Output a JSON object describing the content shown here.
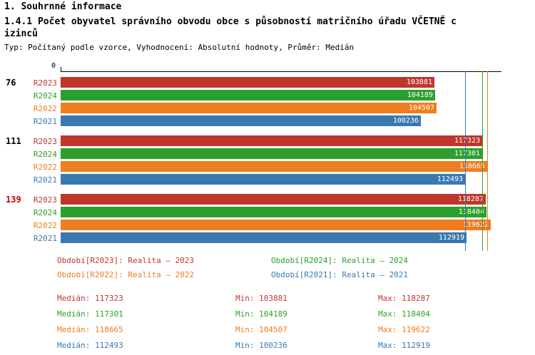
{
  "header": {
    "title": "1. Souhrnné informace",
    "subtitle": "1.4.1 Počet obyvatel správního obvodu obce s působností matričního úřadu VČETNĚ c\nizinců",
    "meta": "Typ: Počítaný podle vzorce, Vyhodnocení: Absolutní hodnoty, Průměr: Medián"
  },
  "colors": {
    "R2023": "#c0362c",
    "R2024": "#2ca02c",
    "R2022": "#ef7d21",
    "R2021": "#3b78b0",
    "group_label_highlight": "#cc0000"
  },
  "chart_data": {
    "type": "bar",
    "orientation": "horizontal",
    "title": "1.4.1 Počet obyvatel správního obvodu obce s působností matričního úřadu VČETNĚ cizinců",
    "x_axis": {
      "min": 0,
      "max": 122000,
      "origin_tick_label": "0",
      "grid": false
    },
    "series_order": [
      "R2023",
      "R2024",
      "R2022",
      "R2021"
    ],
    "groups": [
      {
        "label": "76",
        "highlight": false,
        "values": {
          "R2023": 103881,
          "R2024": 104189,
          "R2022": 104507,
          "R2021": 100236
        }
      },
      {
        "label": "111",
        "highlight": false,
        "values": {
          "R2023": 117323,
          "R2024": 117301,
          "R2022": 118665,
          "R2021": 112493
        }
      },
      {
        "label": "139",
        "highlight": true,
        "values": {
          "R2023": 118287,
          "R2024": 118404,
          "R2022": 119622,
          "R2021": 112919
        }
      }
    ],
    "median_lines": {
      "R2023": 117323,
      "R2024": 117301,
      "R2022": 118665,
      "R2021": 112493
    }
  },
  "legend": [
    {
      "series": "R2023",
      "label": "Období[R2023]: Realita – 2023"
    },
    {
      "series": "R2024",
      "label": "Období[R2024]: Realita – 2024"
    },
    {
      "series": "R2022",
      "label": "Období[R2022]: Realita – 2022"
    },
    {
      "series": "R2021",
      "label": "Období[R2021]: Realita – 2021"
    }
  ],
  "stats": [
    {
      "series": "R2023",
      "median_label": "Medián: 117323",
      "min_label": "Min: 103881",
      "max_label": "Max: 118287"
    },
    {
      "series": "R2024",
      "median_label": "Medián: 117301",
      "min_label": "Min: 104189",
      "max_label": "Max: 118404"
    },
    {
      "series": "R2022",
      "median_label": "Medián: 118665",
      "min_label": "Min: 104507",
      "max_label": "Max: 119622"
    },
    {
      "series": "R2021",
      "median_label": "Medián: 112493",
      "min_label": "Min: 100236",
      "max_label": "Max: 112919"
    }
  ]
}
